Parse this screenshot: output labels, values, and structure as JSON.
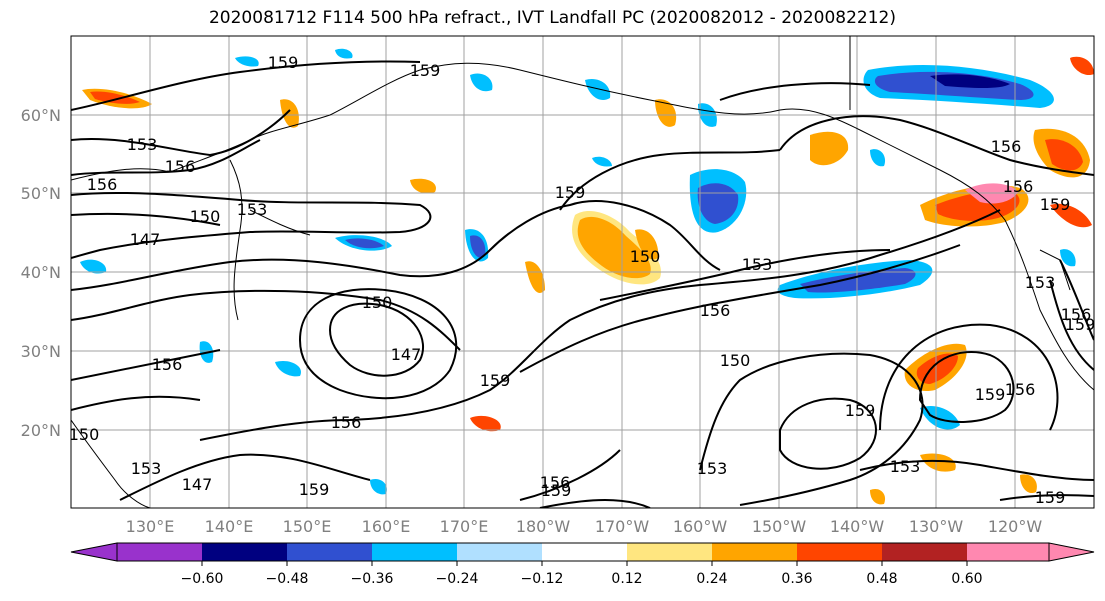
{
  "title": "2020081712 F114 500 hPa refract., IVT Landfall PC (2020082012 - 2020082212)",
  "latitude_labels": [
    "60°N",
    "50°N",
    "40°N",
    "30°N",
    "20°N"
  ],
  "longitude_labels": [
    "130°E",
    "140°E",
    "150°E",
    "160°E",
    "170°E",
    "180°W",
    "170°W",
    "160°W",
    "150°W",
    "140°W",
    "130°W",
    "120°W"
  ],
  "colorbar": {
    "colors": [
      "#9932cc",
      "#000080",
      "#3050d0",
      "#00bfff",
      "#b0e0ff",
      "#ffffff",
      "#ffffff",
      "#ffe680",
      "#ffa500",
      "#ff4500",
      "#b22222",
      "#ff88b0"
    ],
    "tick_labels": [
      "−0.60",
      "−0.48",
      "−0.36",
      "−0.24",
      "−0.12",
      "0.12",
      "0.24",
      "0.36",
      "0.48",
      "0.60"
    ]
  },
  "contour_labels": [
    "159",
    "159",
    "153",
    "156",
    "156",
    "150",
    "153",
    "147",
    "156",
    "150",
    "147",
    "159",
    "150",
    "153",
    "156",
    "159",
    "153",
    "150",
    "156",
    "147",
    "159",
    "156",
    "153",
    "159",
    "156",
    "156",
    "153",
    "159",
    "159",
    "156",
    "150",
    "156",
    "153",
    "159",
    "159",
    "159"
  ]
}
